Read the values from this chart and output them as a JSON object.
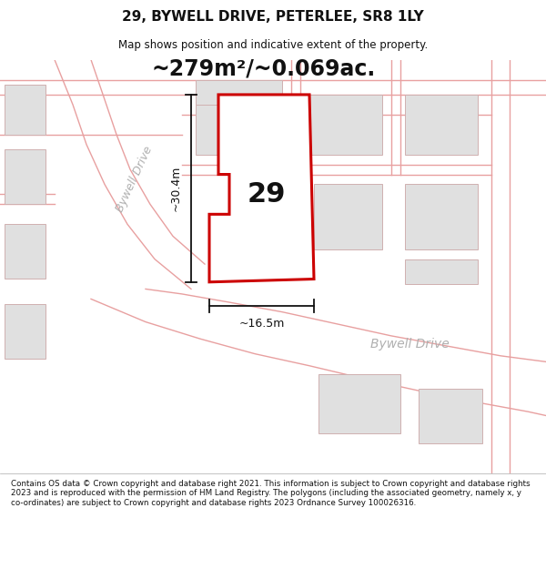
{
  "title": "29, BYWELL DRIVE, PETERLEE, SR8 1LY",
  "subtitle": "Map shows position and indicative extent of the property.",
  "area_label": "~279m²/~0.069ac.",
  "number_label": "29",
  "width_label": "~16.5m",
  "height_label": "~30.4m",
  "road_label_diagonal": "Bywell Drive",
  "road_label_horizontal": "Bywell Drive",
  "footer": "Contains OS data © Crown copyright and database right 2021. This information is subject to Crown copyright and database rights 2023 and is reproduced with the permission of HM Land Registry. The polygons (including the associated geometry, namely x, y co-ordinates) are subject to Crown copyright and database rights 2023 Ordnance Survey 100026316.",
  "bg_color": "#ffffff",
  "map_bg": "#ffffff",
  "plot_fill": "#ffffff",
  "plot_edge_color": "#cc0000",
  "road_line_color": "#e8a0a0",
  "building_color": "#e0e0e0",
  "building_edge": "#d0b0b0",
  "dim_color": "#111111",
  "text_color": "#111111",
  "road_label_color": "#b0b0b0",
  "area_label_color": "#111111"
}
